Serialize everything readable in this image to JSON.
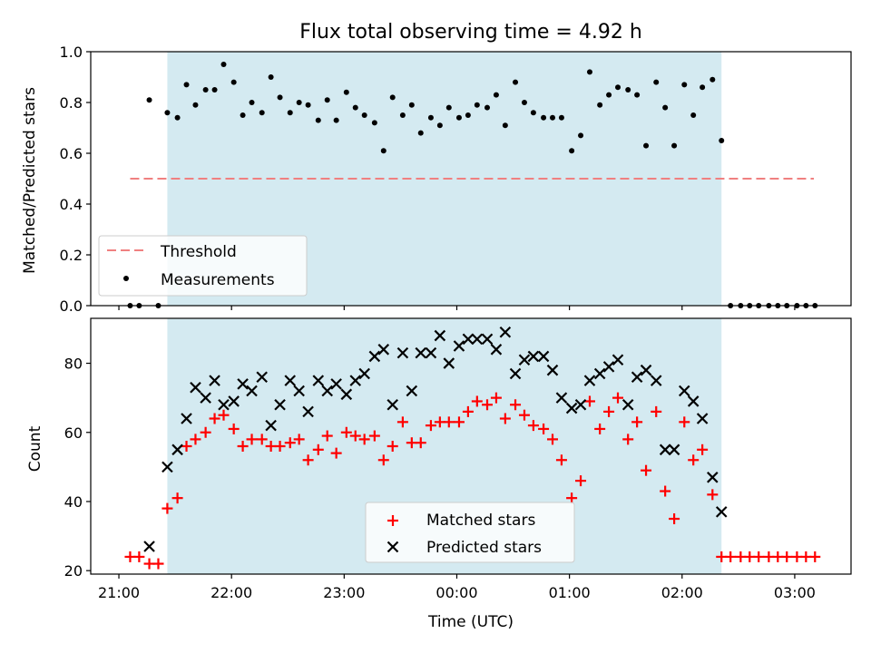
{
  "title": "Flux total observing time = 4.92 h",
  "colors": {
    "observing_span": "#d4eaf1",
    "threshold": "#f08080",
    "measurements": "#000000",
    "matched": "#ff0000",
    "predicted": "#000000"
  },
  "xaxis": {
    "label": "Time (UTC)",
    "range_hours": [
      20.75,
      27.5
    ],
    "ticks": [
      {
        "value": 21,
        "label": "21:00"
      },
      {
        "value": 22,
        "label": "22:00"
      },
      {
        "value": 23,
        "label": "23:00"
      },
      {
        "value": 24,
        "label": "00:00"
      },
      {
        "value": 25,
        "label": "01:00"
      },
      {
        "value": 26,
        "label": "02:00"
      },
      {
        "value": 27,
        "label": "03:00"
      }
    ]
  },
  "chart_data": [
    {
      "type": "scatter",
      "panel": "top",
      "ylabel": "Matched/Predicted stars",
      "ylim": [
        0,
        1.0
      ],
      "yticks": [
        "0.0",
        "0.2",
        "0.4",
        "0.6",
        "0.8",
        "1.0"
      ],
      "legend_position": "lower-left",
      "observing_span": [
        21.43,
        26.35
      ],
      "threshold": {
        "name": "Threshold",
        "value": 0.5,
        "x_range": [
          21.1,
          27.17
        ]
      },
      "series": [
        {
          "name": "Measurements",
          "marker": "dot",
          "points": [
            [
              21.1,
              0.0
            ],
            [
              21.18,
              0.0
            ],
            [
              21.27,
              0.81
            ],
            [
              21.35,
              0.0
            ],
            [
              21.43,
              0.76
            ],
            [
              21.52,
              0.74
            ],
            [
              21.6,
              0.87
            ],
            [
              21.68,
              0.79
            ],
            [
              21.77,
              0.85
            ],
            [
              21.85,
              0.85
            ],
            [
              21.93,
              0.95
            ],
            [
              22.02,
              0.88
            ],
            [
              22.1,
              0.75
            ],
            [
              22.18,
              0.8
            ],
            [
              22.27,
              0.76
            ],
            [
              22.35,
              0.9
            ],
            [
              22.43,
              0.82
            ],
            [
              22.52,
              0.76
            ],
            [
              22.6,
              0.8
            ],
            [
              22.68,
              0.79
            ],
            [
              22.77,
              0.73
            ],
            [
              22.85,
              0.81
            ],
            [
              22.93,
              0.73
            ],
            [
              23.02,
              0.84
            ],
            [
              23.1,
              0.78
            ],
            [
              23.18,
              0.75
            ],
            [
              23.27,
              0.72
            ],
            [
              23.35,
              0.61
            ],
            [
              23.43,
              0.82
            ],
            [
              23.52,
              0.75
            ],
            [
              23.6,
              0.79
            ],
            [
              23.68,
              0.68
            ],
            [
              23.77,
              0.74
            ],
            [
              23.85,
              0.71
            ],
            [
              23.93,
              0.78
            ],
            [
              24.02,
              0.74
            ],
            [
              24.1,
              0.75
            ],
            [
              24.18,
              0.79
            ],
            [
              24.27,
              0.78
            ],
            [
              24.35,
              0.83
            ],
            [
              24.43,
              0.71
            ],
            [
              24.52,
              0.88
            ],
            [
              24.6,
              0.8
            ],
            [
              24.68,
              0.76
            ],
            [
              24.77,
              0.74
            ],
            [
              24.85,
              0.74
            ],
            [
              24.93,
              0.74
            ],
            [
              25.02,
              0.61
            ],
            [
              25.1,
              0.67
            ],
            [
              25.18,
              0.92
            ],
            [
              25.27,
              0.79
            ],
            [
              25.35,
              0.83
            ],
            [
              25.43,
              0.86
            ],
            [
              25.52,
              0.85
            ],
            [
              25.6,
              0.83
            ],
            [
              25.68,
              0.63
            ],
            [
              25.77,
              0.88
            ],
            [
              25.85,
              0.78
            ],
            [
              25.93,
              0.63
            ],
            [
              26.02,
              0.87
            ],
            [
              26.1,
              0.75
            ],
            [
              26.18,
              0.86
            ],
            [
              26.27,
              0.89
            ],
            [
              26.35,
              0.65
            ],
            [
              26.43,
              0.0
            ],
            [
              26.52,
              0.0
            ],
            [
              26.6,
              0.0
            ],
            [
              26.68,
              0.0
            ],
            [
              26.77,
              0.0
            ],
            [
              26.85,
              0.0
            ],
            [
              26.93,
              0.0
            ],
            [
              27.02,
              0.0
            ],
            [
              27.1,
              0.0
            ],
            [
              27.18,
              0.0
            ]
          ]
        }
      ]
    },
    {
      "type": "scatter",
      "panel": "bottom",
      "ylabel": "Count",
      "xlabel": "Time (UTC)",
      "ylim": [
        19,
        93
      ],
      "yticks": [
        "20",
        "40",
        "60",
        "80"
      ],
      "legend_position": "lower-center",
      "observing_span": [
        21.43,
        26.35
      ],
      "x": [
        21.1,
        21.18,
        21.27,
        21.35,
        21.43,
        21.52,
        21.6,
        21.68,
        21.77,
        21.85,
        21.93,
        22.02,
        22.1,
        22.18,
        22.27,
        22.35,
        22.43,
        22.52,
        22.6,
        22.68,
        22.77,
        22.85,
        22.93,
        23.02,
        23.1,
        23.18,
        23.27,
        23.35,
        23.43,
        23.52,
        23.6,
        23.68,
        23.77,
        23.85,
        23.93,
        24.02,
        24.1,
        24.18,
        24.27,
        24.35,
        24.43,
        24.52,
        24.6,
        24.68,
        24.77,
        24.85,
        24.93,
        25.02,
        25.1,
        25.18,
        25.27,
        25.35,
        25.43,
        25.52,
        25.6,
        25.68,
        25.77,
        25.85,
        25.93,
        26.02,
        26.1,
        26.18,
        26.27,
        26.35,
        26.43,
        26.52,
        26.6,
        26.68,
        26.77,
        26.85,
        26.93,
        27.02,
        27.1,
        27.18
      ],
      "series": [
        {
          "name": "Matched stars",
          "marker": "plus",
          "values": [
            24,
            24,
            22,
            22,
            38,
            41,
            56,
            58,
            60,
            64,
            65,
            61,
            56,
            58,
            58,
            56,
            56,
            57,
            58,
            52,
            55,
            59,
            54,
            60,
            59,
            58,
            59,
            52,
            56,
            63,
            57,
            57,
            62,
            63,
            63,
            63,
            66,
            69,
            68,
            70,
            64,
            68,
            65,
            62,
            61,
            58,
            52,
            41,
            46,
            69,
            61,
            66,
            70,
            58,
            63,
            49,
            66,
            43,
            35,
            63,
            52,
            55,
            42,
            24,
            24,
            24,
            24,
            24,
            24,
            24,
            24,
            24,
            24,
            24
          ]
        },
        {
          "name": "Predicted stars",
          "marker": "x",
          "points": [
            [
              21.27,
              27
            ],
            [
              21.43,
              50
            ],
            [
              21.52,
              55
            ],
            [
              21.6,
              64
            ],
            [
              21.68,
              73
            ],
            [
              21.77,
              70
            ],
            [
              21.85,
              75
            ],
            [
              21.93,
              68
            ],
            [
              22.02,
              69
            ],
            [
              22.1,
              74
            ],
            [
              22.18,
              72
            ],
            [
              22.27,
              76
            ],
            [
              22.35,
              62
            ],
            [
              22.43,
              68
            ],
            [
              22.52,
              75
            ],
            [
              22.6,
              72
            ],
            [
              22.68,
              66
            ],
            [
              22.77,
              75
            ],
            [
              22.85,
              72
            ],
            [
              22.93,
              74
            ],
            [
              23.02,
              71
            ],
            [
              23.1,
              75
            ],
            [
              23.18,
              77
            ],
            [
              23.27,
              82
            ],
            [
              23.35,
              84
            ],
            [
              23.43,
              68
            ],
            [
              23.52,
              83
            ],
            [
              23.6,
              72
            ],
            [
              23.68,
              83
            ],
            [
              23.77,
              83
            ],
            [
              23.85,
              88
            ],
            [
              23.93,
              80
            ],
            [
              24.02,
              85
            ],
            [
              24.1,
              87
            ],
            [
              24.18,
              87
            ],
            [
              24.27,
              87
            ],
            [
              24.35,
              84
            ],
            [
              24.43,
              89
            ],
            [
              24.52,
              77
            ],
            [
              24.6,
              81
            ],
            [
              24.68,
              82
            ],
            [
              24.77,
              82
            ],
            [
              24.85,
              78
            ],
            [
              24.93,
              70
            ],
            [
              25.02,
              67
            ],
            [
              25.1,
              68
            ],
            [
              25.18,
              75
            ],
            [
              25.27,
              77
            ],
            [
              25.35,
              79
            ],
            [
              25.43,
              81
            ],
            [
              25.52,
              68
            ],
            [
              25.6,
              76
            ],
            [
              25.68,
              78
            ],
            [
              25.77,
              75
            ],
            [
              25.85,
              55
            ],
            [
              25.93,
              55
            ],
            [
              26.02,
              72
            ],
            [
              26.1,
              69
            ],
            [
              26.18,
              64
            ],
            [
              26.27,
              47
            ],
            [
              26.35,
              37
            ]
          ]
        }
      ]
    }
  ]
}
